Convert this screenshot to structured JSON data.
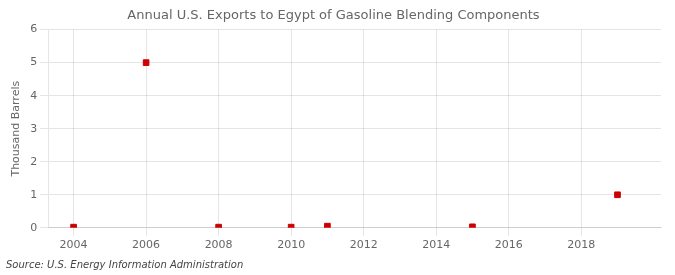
{
  "chart_data": {
    "type": "scatter",
    "title": "Annual U.S. Exports to Egypt of Gasoline Blending Components",
    "ylabel": "Thousand Barrels",
    "annotations": [
      "Source: U.S. Energy Information Administration"
    ],
    "x": [
      2004,
      2006,
      2008,
      2010,
      2011,
      2015,
      2019
    ],
    "values": [
      0.02,
      5,
      0.02,
      0.02,
      0.05,
      0.03,
      1
    ],
    "color": "#cc0000",
    "marker": "square",
    "xlim": [
      2003.3,
      2020.2
    ],
    "xticks": [
      2004,
      2006,
      2008,
      2010,
      2012,
      2014,
      2016,
      2018
    ],
    "ylim": [
      0,
      6
    ],
    "yticks": [
      0,
      1,
      2,
      3,
      4,
      5,
      6
    ],
    "grid": true
  }
}
